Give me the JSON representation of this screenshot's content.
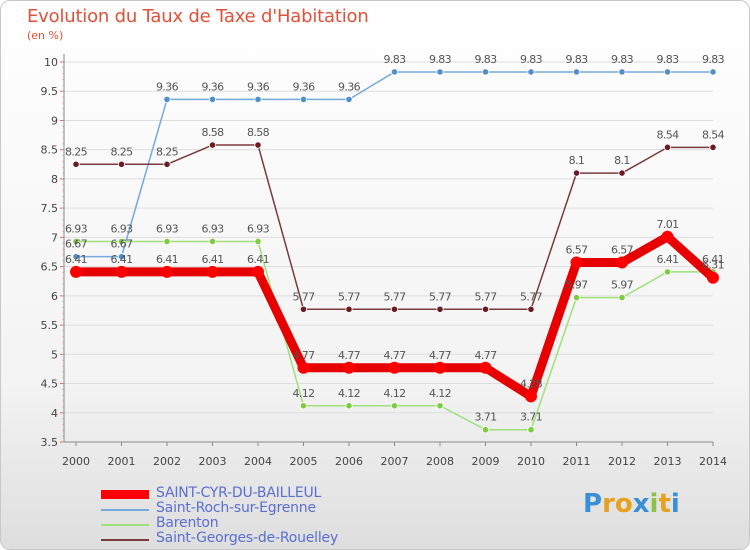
{
  "colors": {
    "title": "#e0513a",
    "axis_text": "#444444",
    "grid": "#dddddd",
    "legend_text": "#5a6fd0"
  },
  "chart_data": {
    "type": "line",
    "title": "Evolution du Taux de Taxe d'Habitation",
    "ylabel": "(en %)",
    "xlabel": "",
    "x": [
      "2000",
      "2001",
      "2002",
      "2003",
      "2004",
      "2005",
      "2006",
      "2007",
      "2008",
      "2009",
      "2010",
      "2011",
      "2012",
      "2013",
      "2014"
    ],
    "ylim": [
      3.5,
      10
    ],
    "yticks": [
      "3.5",
      "4",
      "4.5",
      "5",
      "5.5",
      "6",
      "6.5",
      "7",
      "7.5",
      "8",
      "8.5",
      "9",
      "9.5",
      "10"
    ],
    "grid": "horizontal",
    "series": [
      {
        "name": "SAINT-CYR-DU-BAILLEUL",
        "color": "#ff0000",
        "line_color": "#e60000",
        "style": "thick",
        "values": [
          6.41,
          6.41,
          6.41,
          6.41,
          6.41,
          4.77,
          4.77,
          4.77,
          4.77,
          4.77,
          4.28,
          6.57,
          6.57,
          7.01,
          6.31
        ],
        "labels": [
          "6.41",
          "6.41",
          "6.41",
          "6.41",
          "6.41",
          "4.77",
          "4.77",
          "4.77",
          "4.77",
          "4.77",
          "4.28",
          "6.57",
          "6.57",
          "7.01",
          "6.31"
        ]
      },
      {
        "name": "Saint-Roch-sur-Egrenne",
        "color": "#4f8fce",
        "line_color": "#74a9dc",
        "style": "thin",
        "values": [
          6.67,
          6.67,
          9.36,
          9.36,
          9.36,
          9.36,
          9.36,
          9.83,
          9.83,
          9.83,
          9.83,
          9.83,
          9.83,
          9.83,
          9.83
        ],
        "labels": [
          "6.67",
          "6.67",
          "9.36",
          "9.36",
          "9.36",
          "9.36",
          "9.36",
          "9.83",
          "9.83",
          "9.83",
          "9.83",
          "9.83",
          "9.83",
          "9.83",
          "9.83"
        ]
      },
      {
        "name": "Barenton",
        "color": "#7ccc3f",
        "line_color": "#9fe07a",
        "style": "thin",
        "values": [
          6.93,
          6.93,
          6.93,
          6.93,
          6.93,
          4.12,
          4.12,
          4.12,
          4.12,
          3.71,
          3.71,
          5.97,
          5.97,
          6.41,
          6.41
        ],
        "labels": [
          "6.93",
          "6.93",
          "6.93",
          "6.93",
          "6.93",
          "4.12",
          "4.12",
          "4.12",
          "4.12",
          "3.71",
          "3.71",
          "5.97",
          "5.97",
          "6.41",
          "6.41"
        ]
      },
      {
        "name": "Saint-Georges-de-Rouelley",
        "color": "#6b1b22",
        "line_color": "#7a3a3e",
        "style": "thin",
        "values": [
          8.25,
          8.25,
          8.25,
          8.58,
          8.58,
          5.77,
          5.77,
          5.77,
          5.77,
          5.77,
          5.77,
          8.1,
          8.1,
          8.54,
          8.54
        ],
        "labels": [
          "8.25",
          "8.25",
          "8.25",
          "8.58",
          "8.58",
          "5.77",
          "5.77",
          "5.77",
          "5.77",
          "5.77",
          "5.77",
          "8.1",
          "8.1",
          "8.54",
          "8.54"
        ]
      }
    ]
  },
  "logo": {
    "letters": [
      "P",
      "r",
      "o",
      "x",
      "i",
      "t",
      "i"
    ],
    "colors": [
      "#3a8fd6",
      "#e8a020",
      "#e8a020",
      "#3a8fd6",
      "#8bc34a",
      "#e8a020",
      "#3a8fd6"
    ]
  }
}
